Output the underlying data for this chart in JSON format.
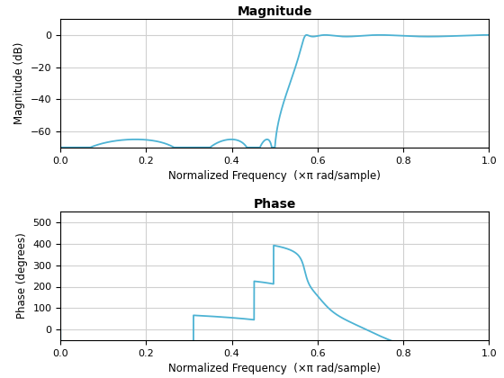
{
  "line_color": "#4db3d4",
  "line_width": 1.3,
  "mag_title": "Magnitude",
  "phase_title": "Phase",
  "mag_ylabel": "Magnitude (dB)",
  "phase_ylabel": "Phase (degrees)",
  "xlabel": "Normalized Frequency  (×π rad/sample)",
  "mag_ylim": [
    -70,
    10
  ],
  "mag_yticks": [
    0,
    -20,
    -40,
    -60
  ],
  "phase_ylim": [
    -50,
    550
  ],
  "phase_yticks": [
    0,
    100,
    200,
    300,
    400,
    500
  ],
  "xlim": [
    0,
    1
  ],
  "xticks": [
    0,
    0.2,
    0.4,
    0.6,
    0.8,
    1.0
  ],
  "bg_color": "#ffffff",
  "grid_color": "#d0d0d0"
}
